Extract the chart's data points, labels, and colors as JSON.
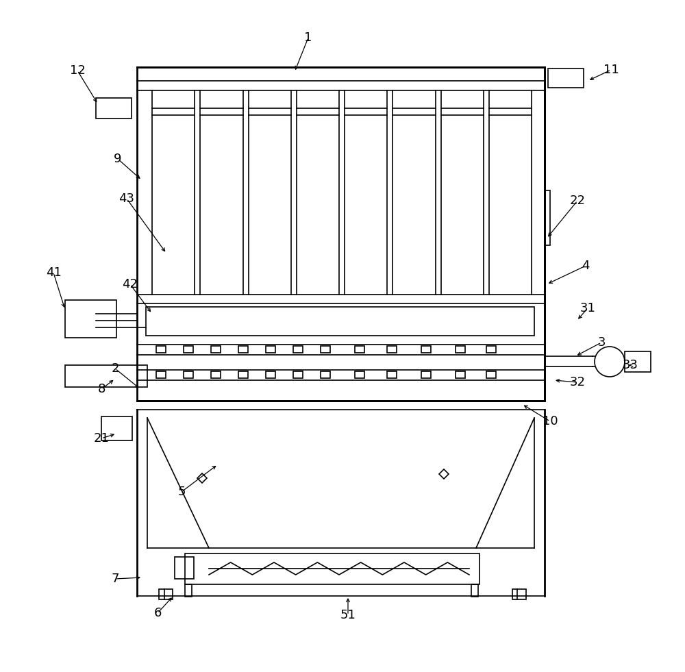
{
  "bg_color": "#ffffff",
  "line_color": "#000000",
  "lw": 1.2,
  "lw2": 2.0,
  "fig_width": 10.0,
  "fig_height": 9.81,
  "labels_data": [
    [
      "1",
      450,
      55,
      430,
      105
    ],
    [
      "2",
      168,
      538,
      205,
      568
    ],
    [
      "3",
      878,
      500,
      840,
      520
    ],
    [
      "4",
      855,
      388,
      798,
      415
    ],
    [
      "5",
      265,
      718,
      318,
      678
    ],
    [
      "6",
      230,
      895,
      253,
      870
    ],
    [
      "7",
      168,
      845,
      208,
      843
    ],
    [
      "8",
      148,
      568,
      168,
      553
    ],
    [
      "9",
      172,
      232,
      207,
      263
    ],
    [
      "10",
      803,
      615,
      762,
      590
    ],
    [
      "11",
      892,
      102,
      858,
      118
    ],
    [
      "12",
      113,
      103,
      143,
      152
    ],
    [
      "21",
      148,
      640,
      170,
      633
    ],
    [
      "22",
      843,
      293,
      798,
      348
    ],
    [
      "31",
      858,
      450,
      842,
      468
    ],
    [
      "32",
      843,
      558,
      808,
      555
    ],
    [
      "33",
      920,
      533,
      918,
      533
    ],
    [
      "41",
      78,
      398,
      95,
      452
    ],
    [
      "42",
      190,
      415,
      222,
      458
    ],
    [
      "43",
      185,
      290,
      243,
      370
    ],
    [
      "51",
      508,
      898,
      508,
      870
    ]
  ]
}
